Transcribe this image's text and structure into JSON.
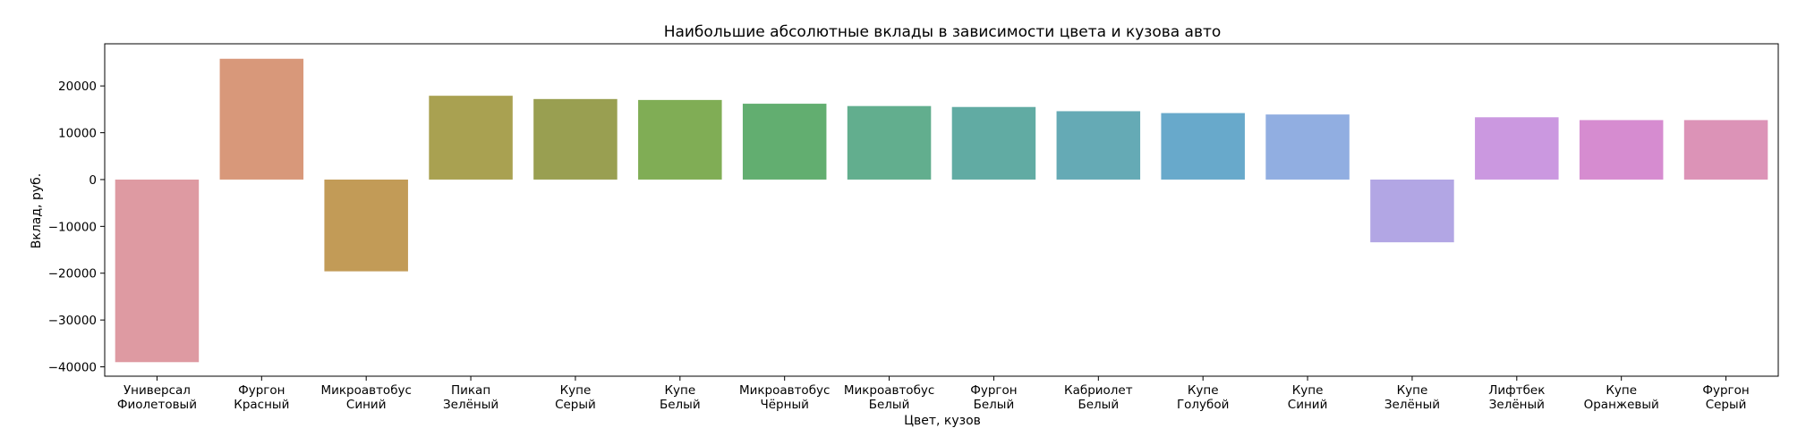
{
  "chart_data": {
    "type": "bar",
    "title": "Наибольшие абсолютные вклады в зависимости цвета и кузова авто",
    "xlabel": "Цвет, кузов",
    "ylabel": "Вклад, руб.",
    "ylim": [
      -42000,
      29000
    ],
    "yticks": [
      -40000,
      -30000,
      -20000,
      -10000,
      0,
      10000,
      20000
    ],
    "grid": false,
    "categories": [
      [
        "Универсал",
        "Фиолетовый"
      ],
      [
        "Фургон",
        "Красный"
      ],
      [
        "Микроавтобус",
        "Синий"
      ],
      [
        "Пикап",
        "Зелёный"
      ],
      [
        "Купе",
        "Серый"
      ],
      [
        "Купе",
        "Белый"
      ],
      [
        "Микроавтобус",
        "Чёрный"
      ],
      [
        "Микроавтобус",
        "Белый"
      ],
      [
        "Фургон",
        "Белый"
      ],
      [
        "Кабриолет",
        "Белый"
      ],
      [
        "Купе",
        "Голубой"
      ],
      [
        "Купе",
        "Синий"
      ],
      [
        "Купе",
        "Зелёный"
      ],
      [
        "Лифтбек",
        "Зелёный"
      ],
      [
        "Купе",
        "Оранжевый"
      ],
      [
        "Фургон",
        "Серый"
      ]
    ],
    "values": [
      -39000,
      25800,
      -19600,
      17900,
      17200,
      17000,
      16200,
      15700,
      15500,
      14600,
      14200,
      13900,
      -13400,
      13300,
      12700,
      12700
    ],
    "colors": [
      "#de9aa2",
      "#d8987a",
      "#c29b57",
      "#a9a151",
      "#999f51",
      "#80ad55",
      "#62ae70",
      "#62ae8e",
      "#61aba3",
      "#65aab5",
      "#68a9cb",
      "#91aee1",
      "#b2a6e4",
      "#cb98e0",
      "#d68cd0",
      "#dc93b7"
    ]
  }
}
